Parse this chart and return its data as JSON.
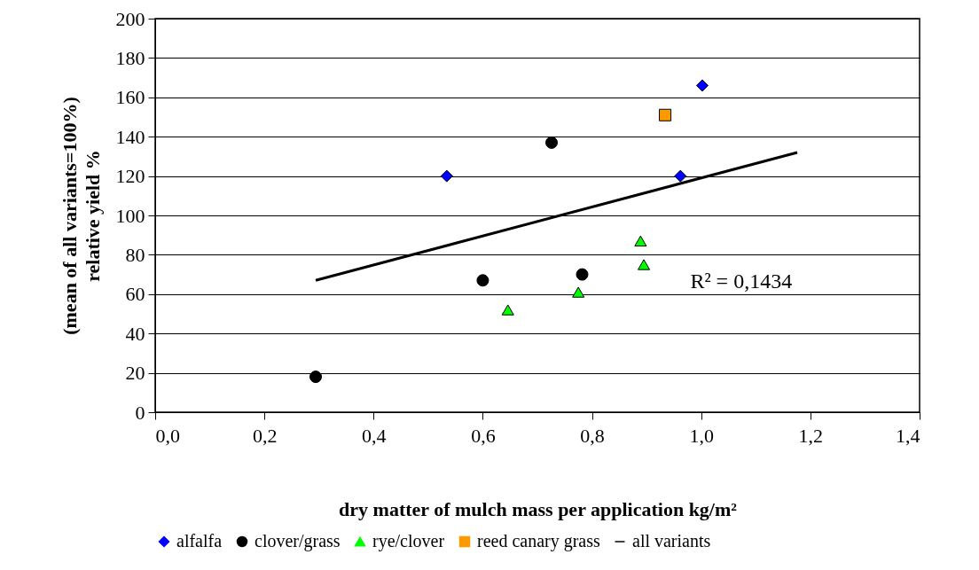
{
  "chart_data": {
    "type": "scatter",
    "xlabel": "dry matter of mulch mass per application kg/m²",
    "ylabel": "(mean of all variants=100%)\nrelative yield %",
    "xlim": [
      0,
      1.4
    ],
    "ylim": [
      0,
      200
    ],
    "xticks": [
      {
        "value": 0,
        "label": "0,0"
      },
      {
        "value": 0.2,
        "label": "0,2"
      },
      {
        "value": 0.4,
        "label": "0,4"
      },
      {
        "value": 0.6,
        "label": "0,6"
      },
      {
        "value": 0.8,
        "label": "0,8"
      },
      {
        "value": 1,
        "label": "1,0"
      },
      {
        "value": 1.2,
        "label": "1,2"
      },
      {
        "value": 1.4,
        "label": "1,4"
      }
    ],
    "yticks": [
      0,
      20,
      40,
      60,
      80,
      100,
      120,
      140,
      160,
      180,
      200
    ],
    "grid": "y",
    "legend": "bottom",
    "annotations": [
      "R² = 0,1434"
    ],
    "series": [
      {
        "name": "alfalfa",
        "color": "#0000ff",
        "marker": "diamond",
        "x": [
          0.534,
          1.002,
          0.962
        ],
        "values": [
          120,
          166,
          120
        ]
      },
      {
        "name": "clover/grass",
        "color": "#000000",
        "marker": "circle",
        "x": [
          0.294,
          0.6,
          0.726,
          0.782
        ],
        "values": [
          18,
          67,
          137,
          70
        ]
      },
      {
        "name": "rye/clover",
        "color": "#00ff00",
        "marker": "triangle",
        "x": [
          0.646,
          0.775,
          0.889,
          0.895
        ],
        "values": [
          52,
          61,
          87,
          75
        ]
      },
      {
        "name": "reed canary grass",
        "color": "#ff9900",
        "marker": "square",
        "x": [
          0.934
        ],
        "values": [
          151
        ]
      },
      {
        "name": "all variants",
        "type": "line",
        "color": "#000000",
        "x": [
          0.294,
          1.176
        ],
        "values": [
          67,
          132
        ]
      }
    ]
  }
}
